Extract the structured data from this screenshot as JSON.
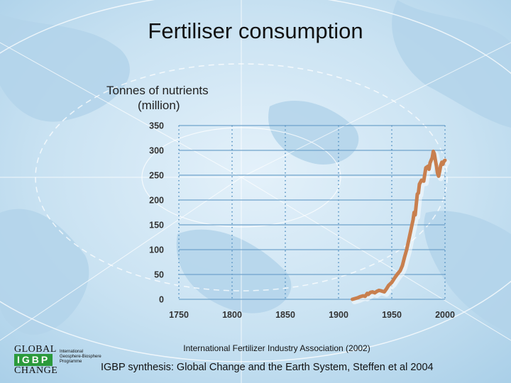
{
  "slide": {
    "title": "Fertiliser consumption",
    "source_note": "International Fertilizer Industry Association (2002)",
    "credit": "IGBP synthesis: Global Change and the Earth System, Steffen et al 2004"
  },
  "logo": {
    "top": "GLOBAL",
    "middle": "IGBP",
    "bottom": "CHANGE",
    "programme": "International Geosphere-Biosphere Programme"
  },
  "colors": {
    "line": "#c87f4e",
    "highlight_tick": "#c87f4e",
    "grid_h": "#6fa3cb",
    "grid_v": "#5a95c4",
    "logo_green": "#2b9a3c"
  },
  "chart_data": {
    "type": "line",
    "title": "Fertiliser consumption",
    "ylabel_line1": "Tonnes of nutrients",
    "ylabel_line2": "(million)",
    "xlabel": "",
    "xlim": [
      1750,
      2000
    ],
    "ylim": [
      0,
      350
    ],
    "x_ticks": [
      1750,
      1800,
      1850,
      1900,
      1950,
      2000
    ],
    "y_ticks": [
      0,
      50,
      100,
      150,
      200,
      250,
      300,
      350
    ],
    "highlight_x_tick": 1950,
    "grid": true,
    "series": [
      {
        "x": [
          1913,
          1918,
          1920,
          1923,
          1925,
          1927,
          1928,
          1930,
          1932,
          1934,
          1936,
          1938,
          1940,
          1943,
          1945,
          1947,
          1950,
          1953,
          1955,
          1958,
          1960,
          1962,
          1964,
          1966,
          1968,
          1970,
          1971,
          1972,
          1974,
          1975,
          1976,
          1978,
          1980,
          1982,
          1984,
          1985,
          1986,
          1988,
          1989,
          1990,
          1991,
          1992,
          1993,
          1994,
          1995,
          1996,
          1997,
          1998,
          1999,
          2000
        ],
        "y": [
          0,
          3,
          5,
          7,
          6,
          12,
          10,
          14,
          15,
          13,
          16,
          18,
          17,
          15,
          21,
          28,
          34,
          44,
          50,
          58,
          68,
          85,
          100,
          120,
          140,
          160,
          175,
          170,
          212,
          214,
          232,
          240,
          238,
          265,
          268,
          262,
          275,
          285,
          298,
          293,
          280,
          268,
          254,
          248,
          258,
          270,
          276,
          272,
          278,
          280
        ]
      }
    ]
  }
}
